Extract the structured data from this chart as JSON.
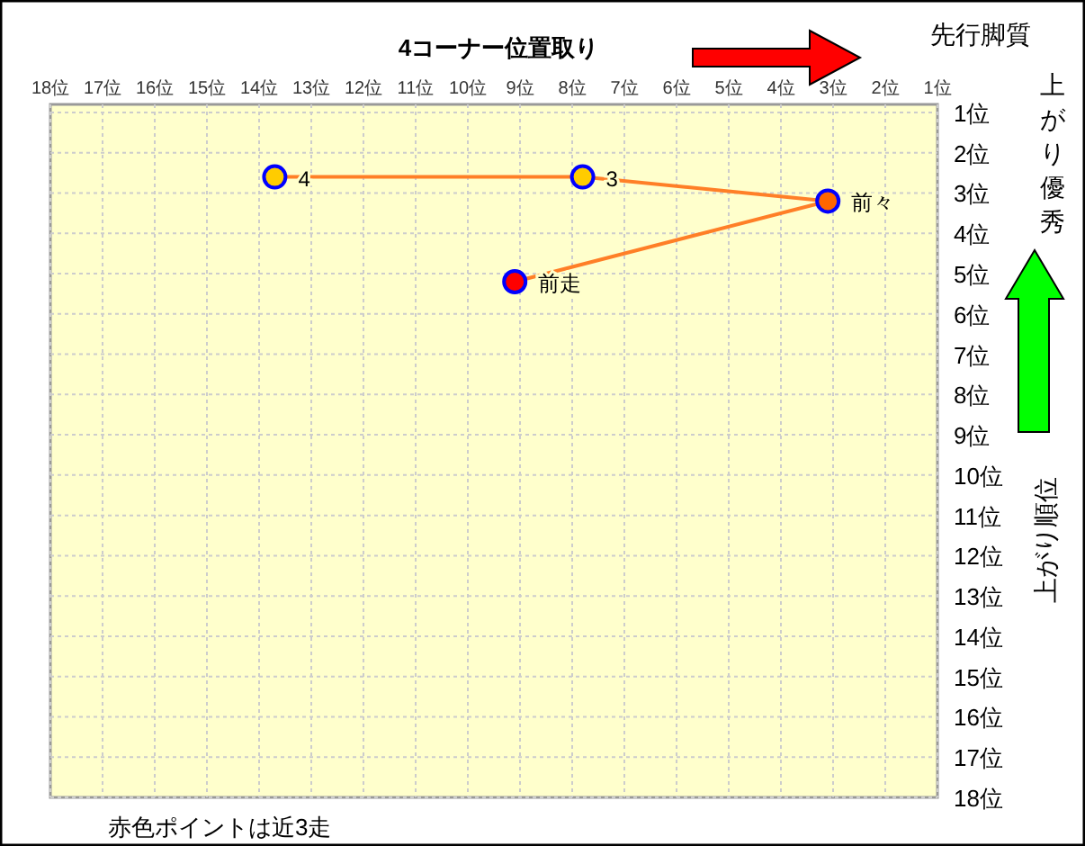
{
  "chart_data": {
    "type": "line",
    "title": "4コーナー位置取り",
    "ylabel": "上がり順位",
    "annotations": [
      {
        "text": "4",
        "x": 13.7,
        "y": 2.6
      },
      {
        "text": "3",
        "x": 7.8,
        "y": 2.6
      },
      {
        "text": "前々",
        "x": 3.1,
        "y": 3.2
      },
      {
        "text": "前走",
        "x": 9.1,
        "y": 5.2
      },
      "先行脚質",
      "上がり優秀",
      "赤色ポイントは近3走"
    ],
    "series": [
      {
        "type": "line",
        "color": "#ff7f27",
        "x": [
          13.7,
          7.8,
          3.1,
          9.1
        ],
        "values": [
          2.6,
          2.6,
          3.2,
          5.2
        ]
      },
      {
        "type": "scatter",
        "x": [
          13.7,
          7.8,
          3.1,
          9.1
        ],
        "values": [
          2.6,
          2.6,
          3.2,
          5.2
        ],
        "colors": [
          "#ffcc00",
          "#ffcc00",
          "#ff6600",
          "#ff0000"
        ],
        "marker": "circle"
      }
    ],
    "grid": true,
    "xlim": [
      18,
      1
    ],
    "ylim": [
      18,
      0.8
    ],
    "xticks": [
      {
        "value": 18,
        "label": "18位"
      },
      {
        "value": 17,
        "label": "17位"
      },
      {
        "value": 16,
        "label": "16位"
      },
      {
        "value": 15,
        "label": "15位"
      },
      {
        "value": 14,
        "label": "14位"
      },
      {
        "value": 13,
        "label": "13位"
      },
      {
        "value": 12,
        "label": "12位"
      },
      {
        "value": 11,
        "label": "11位"
      },
      {
        "value": 10,
        "label": "10位"
      },
      {
        "value": 9,
        "label": "9位"
      },
      {
        "value": 8,
        "label": "8位"
      },
      {
        "value": 7,
        "label": "7位"
      },
      {
        "value": 6,
        "label": "6位"
      },
      {
        "value": 5,
        "label": "5位"
      },
      {
        "value": 4,
        "label": "4位"
      },
      {
        "value": 3,
        "label": "3位"
      },
      {
        "value": 2,
        "label": "2位"
      },
      {
        "value": 1,
        "label": "1位"
      }
    ],
    "yticks": [
      {
        "value": 1,
        "label": "1位"
      },
      {
        "value": 2,
        "label": "2位"
      },
      {
        "value": 3,
        "label": "3位"
      },
      {
        "value": 4,
        "label": "4位"
      },
      {
        "value": 5,
        "label": "5位"
      },
      {
        "value": 6,
        "label": "6位"
      },
      {
        "value": 7,
        "label": "7位"
      },
      {
        "value": 8,
        "label": "8位"
      },
      {
        "value": 9,
        "label": "9位"
      },
      {
        "value": 10,
        "label": "10位"
      },
      {
        "value": 11,
        "label": "11位"
      },
      {
        "value": 12,
        "label": "12位"
      },
      {
        "value": 13,
        "label": "13位"
      },
      {
        "value": 14,
        "label": "14位"
      },
      {
        "value": 15,
        "label": "15位"
      },
      {
        "value": 16,
        "label": "16位"
      },
      {
        "value": 17,
        "label": "17位"
      },
      {
        "value": 18,
        "label": "18位"
      }
    ]
  }
}
